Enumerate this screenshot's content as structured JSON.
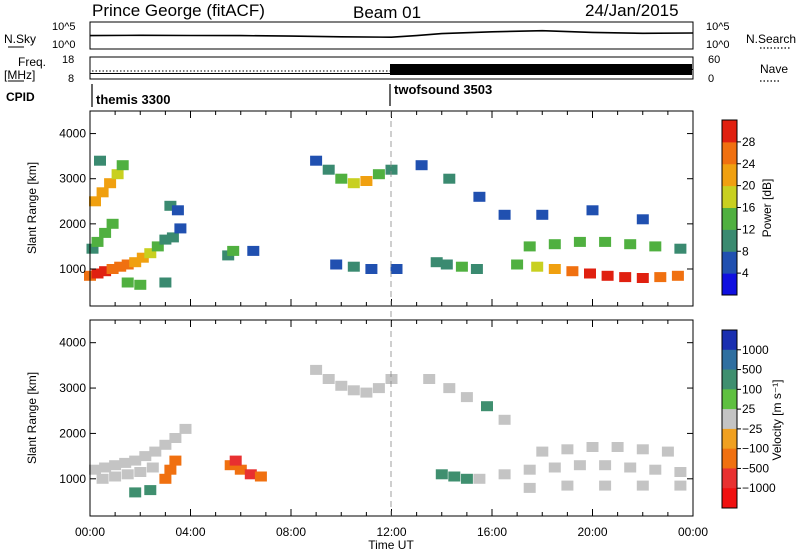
{
  "header": {
    "station": "Prince George (fitACF)",
    "beam": "Beam 01",
    "date": "24/Jan/2015"
  },
  "noise_panel": {
    "left_label": "N.Sky",
    "left_ticks": [
      "10^5",
      "10^0"
    ],
    "right_label": "N.Search",
    "right_ticks": [
      "10^5",
      "10^0"
    ]
  },
  "freq_panel": {
    "left_label_1": "Freq.",
    "left_label_2": "[MHz]",
    "left_ticks": [
      "18",
      "8"
    ],
    "right_label": "Nave",
    "right_ticks": [
      "60",
      "0"
    ]
  },
  "cpid_panel": {
    "label": "CPID",
    "programs": [
      {
        "name": "themis 3300",
        "start_hour": 0
      },
      {
        "name": "twofsound 3503",
        "start_hour": 12
      }
    ]
  },
  "time_axis": {
    "label": "Time UT",
    "ticks": [
      "00:00",
      "04:00",
      "08:00",
      "12:00",
      "16:00",
      "20:00",
      "00:00"
    ]
  },
  "range_axis": {
    "label": "Slant Range [km]",
    "ticks": [
      "1000",
      "2000",
      "3000",
      "4000"
    ]
  },
  "power_colorbar": {
    "label": "Power [dB]",
    "ticks": [
      "4",
      "8",
      "12",
      "16",
      "20",
      "24",
      "28"
    ],
    "colors": [
      "#1010e0",
      "#2050b0",
      "#3a8a70",
      "#50b040",
      "#c8d020",
      "#f0a010",
      "#f07010",
      "#e02010"
    ]
  },
  "velocity_colorbar": {
    "label": "Velocity [m s⁻¹]",
    "ticks": [
      "1000",
      "500",
      "100",
      "25",
      "−25",
      "−100",
      "−500",
      "−1000"
    ],
    "colors": [
      "#1a2fb0",
      "#2f6fa0",
      "#3f8f6f",
      "#5fc040",
      "#c4c4c4",
      "#f0a020",
      "#f07010",
      "#e83030",
      "#f01010"
    ]
  },
  "chart_data": [
    {
      "type": "line",
      "title": "",
      "series": [
        {
          "name": "N.Sky",
          "x": [
            0,
            2,
            4,
            6,
            8,
            10,
            12,
            13,
            14,
            16,
            18,
            20,
            22,
            24
          ],
          "y": [
            300,
            350,
            320,
            300,
            250,
            180,
            150,
            300,
            700,
            1500,
            2500,
            1200,
            800,
            900
          ]
        }
      ],
      "xlabel": "",
      "ylabel": "N.Sky",
      "xlim": [
        0,
        24
      ],
      "ylim": [
        1,
        100000
      ],
      "yscale": "log"
    },
    {
      "type": "line",
      "series": [
        {
          "name": "Freq.",
          "x": [
            0,
            12,
            12,
            24
          ],
          "y": [
            10.5,
            10.5,
            12.3,
            12.3
          ]
        },
        {
          "name": "Nave",
          "x": [
            0,
            12,
            24
          ],
          "y": [
            12,
            12,
            12
          ]
        }
      ],
      "xlim": [
        0,
        24
      ],
      "ylim": [
        8,
        18
      ],
      "y2lim": [
        0,
        60
      ]
    },
    {
      "type": "heatmap",
      "title": "Power [dB]",
      "xlabel": "",
      "ylabel": "Slant Range [km]",
      "xlim": [
        0,
        24
      ],
      "ylim": [
        180,
        4500
      ],
      "zlim": [
        0,
        30
      ],
      "cells": [
        [
          0.0,
          850,
          26
        ],
        [
          0.3,
          900,
          28
        ],
        [
          0.6,
          950,
          27
        ],
        [
          0.9,
          1000,
          26
        ],
        [
          1.2,
          1050,
          25
        ],
        [
          1.5,
          1100,
          24
        ],
        [
          1.8,
          1150,
          22
        ],
        [
          2.1,
          1250,
          20
        ],
        [
          2.4,
          1350,
          16
        ],
        [
          2.7,
          1500,
          12
        ],
        [
          3.0,
          1650,
          9
        ],
        [
          3.3,
          1700,
          8
        ],
        [
          3.6,
          1900,
          7
        ],
        [
          0.1,
          1450,
          9
        ],
        [
          0.3,
          1600,
          12
        ],
        [
          0.6,
          1800,
          14
        ],
        [
          0.9,
          2000,
          12
        ],
        [
          0.2,
          2500,
          20
        ],
        [
          0.5,
          2700,
          22
        ],
        [
          0.8,
          2900,
          20
        ],
        [
          1.1,
          3100,
          16
        ],
        [
          1.3,
          3300,
          12
        ],
        [
          0.4,
          3400,
          10
        ],
        [
          1.5,
          700,
          14
        ],
        [
          2.0,
          650,
          12
        ],
        [
          3.2,
          2400,
          8
        ],
        [
          3.5,
          2300,
          6
        ],
        [
          3.0,
          700,
          10
        ],
        [
          5.5,
          1300,
          10
        ],
        [
          5.7,
          1400,
          14
        ],
        [
          6.5,
          1400,
          6
        ],
        [
          9.0,
          3400,
          6
        ],
        [
          9.5,
          3200,
          10
        ],
        [
          10.0,
          3000,
          14
        ],
        [
          10.5,
          2900,
          18
        ],
        [
          11.0,
          2950,
          20
        ],
        [
          11.5,
          3100,
          14
        ],
        [
          12.0,
          3200,
          8
        ],
        [
          9.8,
          1100,
          7
        ],
        [
          10.5,
          1050,
          8
        ],
        [
          11.2,
          1000,
          6
        ],
        [
          12.2,
          1000,
          5
        ],
        [
          13.8,
          1150,
          8
        ],
        [
          14.2,
          1100,
          10
        ],
        [
          14.8,
          1050,
          12
        ],
        [
          15.4,
          1000,
          9
        ],
        [
          13.2,
          3300,
          6
        ],
        [
          14.3,
          3000,
          8
        ],
        [
          15.5,
          2600,
          6
        ],
        [
          16.5,
          2200,
          5
        ],
        [
          17.0,
          1100,
          12
        ],
        [
          17.8,
          1050,
          16
        ],
        [
          18.5,
          1000,
          20
        ],
        [
          19.2,
          950,
          24
        ],
        [
          19.9,
          900,
          27
        ],
        [
          20.6,
          850,
          28
        ],
        [
          21.3,
          820,
          28
        ],
        [
          22.0,
          800,
          27
        ],
        [
          22.7,
          820,
          26
        ],
        [
          23.4,
          850,
          25
        ],
        [
          17.5,
          1500,
          12
        ],
        [
          18.5,
          1550,
          14
        ],
        [
          19.5,
          1600,
          14
        ],
        [
          20.5,
          1600,
          12
        ],
        [
          21.5,
          1550,
          14
        ],
        [
          22.5,
          1500,
          12
        ],
        [
          23.5,
          1450,
          10
        ],
        [
          18.0,
          2200,
          6
        ],
        [
          20.0,
          2300,
          7
        ],
        [
          22.0,
          2100,
          6
        ]
      ]
    },
    {
      "type": "heatmap",
      "title": "Velocity [m s⁻¹]",
      "xlabel": "Time UT",
      "ylabel": "Slant Range [km]",
      "xlim": [
        0,
        24
      ],
      "ylim": [
        180,
        4500
      ],
      "zlim": [
        -1000,
        1000
      ],
      "cells": [
        [
          0.2,
          1200,
          0
        ],
        [
          0.6,
          1250,
          0
        ],
        [
          1.0,
          1300,
          0
        ],
        [
          1.4,
          1350,
          0
        ],
        [
          1.8,
          1400,
          0
        ],
        [
          2.2,
          1500,
          0
        ],
        [
          2.6,
          1600,
          0
        ],
        [
          3.0,
          1750,
          0
        ],
        [
          3.4,
          1900,
          0
        ],
        [
          3.8,
          2100,
          0
        ],
        [
          0.5,
          1000,
          0
        ],
        [
          1.0,
          1050,
          0
        ],
        [
          1.5,
          1100,
          0
        ],
        [
          2.0,
          1150,
          0
        ],
        [
          2.5,
          1250,
          0
        ],
        [
          1.8,
          700,
          150
        ],
        [
          2.4,
          750,
          120
        ],
        [
          3.0,
          1000,
          -150
        ],
        [
          3.2,
          1200,
          -300
        ],
        [
          3.4,
          1400,
          -120
        ],
        [
          5.6,
          1300,
          -300
        ],
        [
          6.0,
          1200,
          -500
        ],
        [
          6.4,
          1100,
          -600
        ],
        [
          6.8,
          1050,
          -250
        ],
        [
          5.8,
          1400,
          -700
        ],
        [
          9.0,
          3400,
          0
        ],
        [
          9.5,
          3200,
          0
        ],
        [
          10.0,
          3050,
          0
        ],
        [
          10.5,
          2950,
          0
        ],
        [
          11.0,
          2900,
          0
        ],
        [
          11.5,
          3000,
          0
        ],
        [
          12.0,
          3200,
          0
        ],
        [
          14.0,
          1100,
          150
        ],
        [
          14.5,
          1050,
          200
        ],
        [
          15.0,
          1000,
          120
        ],
        [
          15.5,
          1000,
          0
        ],
        [
          16.5,
          1100,
          0
        ],
        [
          17.5,
          1200,
          0
        ],
        [
          18.5,
          1250,
          0
        ],
        [
          19.5,
          1300,
          0
        ],
        [
          20.5,
          1300,
          0
        ],
        [
          21.5,
          1250,
          0
        ],
        [
          22.5,
          1200,
          0
        ],
        [
          23.5,
          1150,
          0
        ],
        [
          18.0,
          1600,
          0
        ],
        [
          19.0,
          1650,
          0
        ],
        [
          20.0,
          1700,
          0
        ],
        [
          21.0,
          1700,
          0
        ],
        [
          22.0,
          1650,
          0
        ],
        [
          23.0,
          1600,
          0
        ],
        [
          17.5,
          800,
          0
        ],
        [
          19.0,
          850,
          0
        ],
        [
          20.5,
          850,
          0
        ],
        [
          22.0,
          850,
          0
        ],
        [
          23.5,
          850,
          0
        ],
        [
          13.5,
          3200,
          0
        ],
        [
          14.3,
          3000,
          0
        ],
        [
          15.0,
          2800,
          0
        ],
        [
          15.8,
          2600,
          150
        ],
        [
          16.5,
          2300,
          0
        ]
      ]
    }
  ]
}
